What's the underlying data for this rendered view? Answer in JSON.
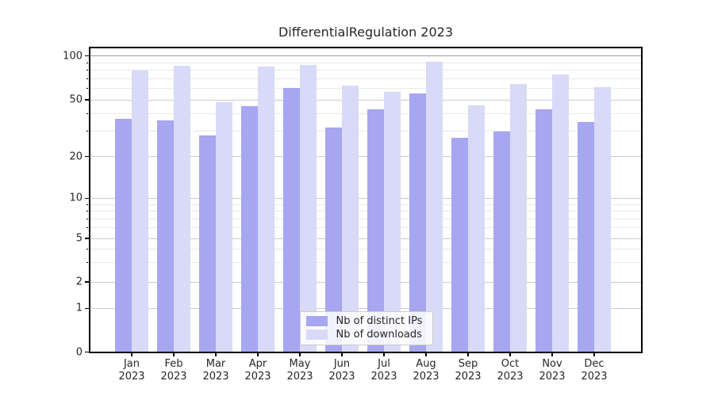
{
  "title": "DifferentialRegulation 2023",
  "legend": {
    "items": [
      {
        "label": "Nb of distinct IPs",
        "color": "#a6a6f1"
      },
      {
        "label": "Nb of downloads",
        "color": "#d9d9f8"
      }
    ]
  },
  "chart_data": {
    "type": "bar",
    "title": "DifferentialRegulation 2023",
    "categories": [
      "Jan\n2023",
      "Feb\n2023",
      "Mar\n2023",
      "Apr\n2023",
      "May\n2023",
      "Jun\n2023",
      "Jul\n2023",
      "Aug\n2023",
      "Sep\n2023",
      "Oct\n2023",
      "Nov\n2023",
      "Dec\n2023"
    ],
    "series": [
      {
        "name": "Nb of distinct IPs",
        "color": "#a6a6f1",
        "values": [
          37,
          36,
          28,
          45,
          60,
          32,
          43,
          55,
          27,
          30,
          43,
          35
        ]
      },
      {
        "name": "Nb of downloads",
        "color": "#d9d9f8",
        "values": [
          80,
          86,
          48,
          85,
          87,
          63,
          57,
          91,
          46,
          64,
          75,
          61
        ]
      }
    ],
    "xlabel": "",
    "ylabel": "",
    "y_scale": "log-like (asinh), linear below 1",
    "y_ticks": [
      0,
      1,
      2,
      5,
      10,
      20,
      50,
      100
    ],
    "y_minor_ticks": [
      3,
      4,
      6,
      7,
      8,
      9,
      30,
      40,
      60,
      70,
      80,
      90
    ],
    "ylim": [
      0,
      115
    ],
    "grid": "major and minor horizontal gridlines",
    "legend_position": "lower center"
  }
}
